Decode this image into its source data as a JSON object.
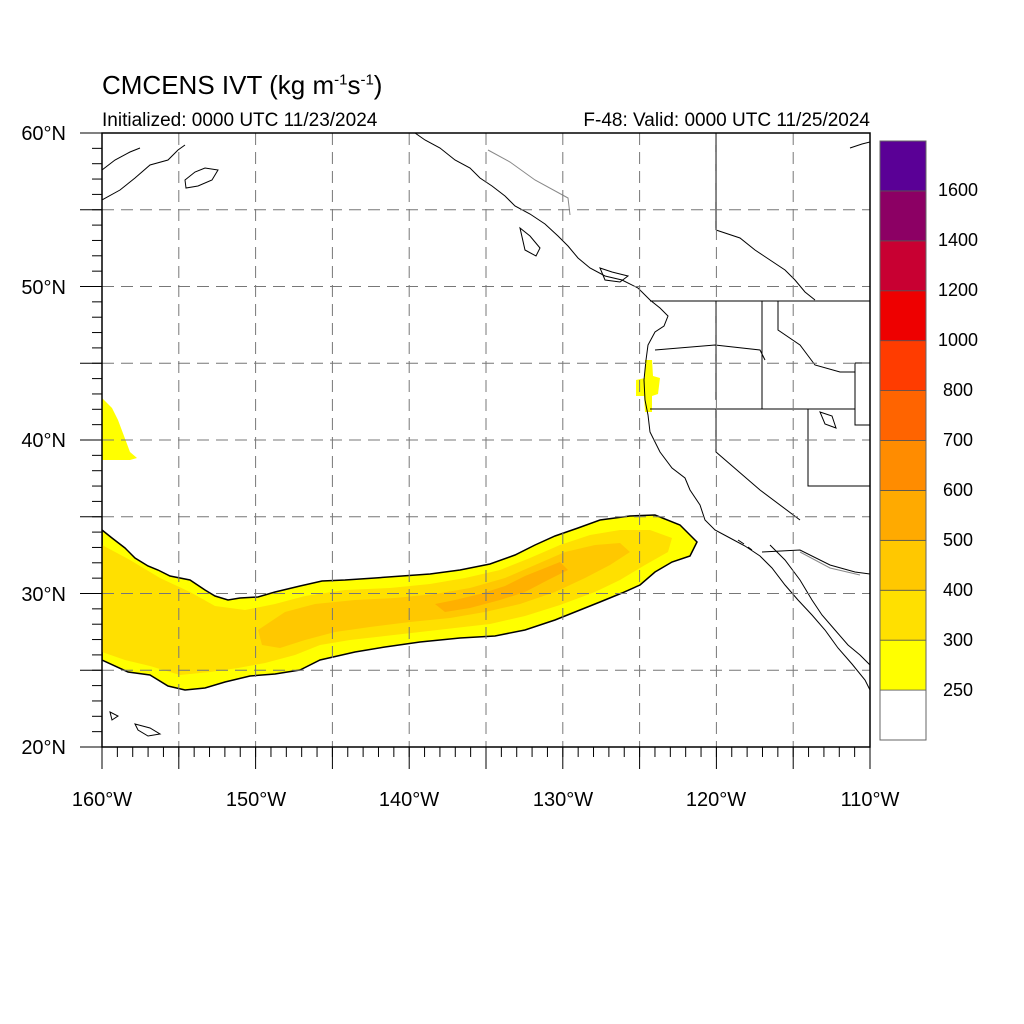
{
  "title": {
    "main": "CMCENS IVT (kg m",
    "sup1": "-1",
    "mid": "s",
    "sup2": "-1",
    "close": ")"
  },
  "subtitle_left": "Initialized: 0000 UTC 11/23/2024",
  "subtitle_right": "F-48: Valid: 0000 UTC 11/25/2024",
  "map": {
    "lon_range": [
      -160,
      -110
    ],
    "lat_range": [
      20,
      60
    ],
    "lat_labels": [
      "60°N",
      "50°N",
      "40°N",
      "30°N",
      "20°N"
    ],
    "lon_labels": [
      "160°W",
      "150°W",
      "140°W",
      "130°W",
      "120°W",
      "110°W"
    ],
    "grid": "dashed every 5°"
  },
  "colorbar": {
    "labels": [
      "250",
      "300",
      "400",
      "500",
      "600",
      "700",
      "800",
      "1000",
      "1200",
      "1400",
      "1600"
    ],
    "colors": [
      "#ffffff",
      "#ffff00",
      "#ffe000",
      "#ffc800",
      "#ffaa00",
      "#ff8c00",
      "#ff6400",
      "#ff3c00",
      "#ee0000",
      "#c80032",
      "#8c0064",
      "#5a0096"
    ]
  }
}
